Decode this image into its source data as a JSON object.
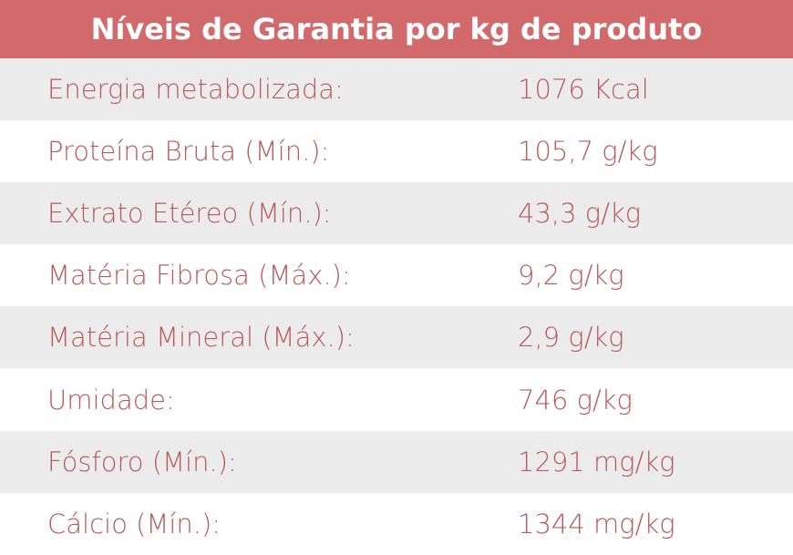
{
  "table": {
    "title": "Níveis de Garantia por kg de produto",
    "rows": [
      [
        "Energia metabolizada:",
        "1076 Kcal"
      ],
      [
        "Proteína Bruta (Mín.):",
        "105,7 g/kg"
      ],
      [
        "Extrato Etéreo (Mín.):",
        "43,3 g/kg"
      ],
      [
        "Matéria Fibrosa (Máx.):",
        "9,2 g/kg"
      ],
      [
        "Matéria Mineral (Máx.):",
        "2,9 g/kg"
      ],
      [
        "Umidade:",
        "746 g/kg"
      ],
      [
        "Fósforo (Mín.):",
        "1291 mg/kg"
      ],
      [
        "Cálcio (Mín.):",
        "1344 mg/kg"
      ]
    ]
  }
}
